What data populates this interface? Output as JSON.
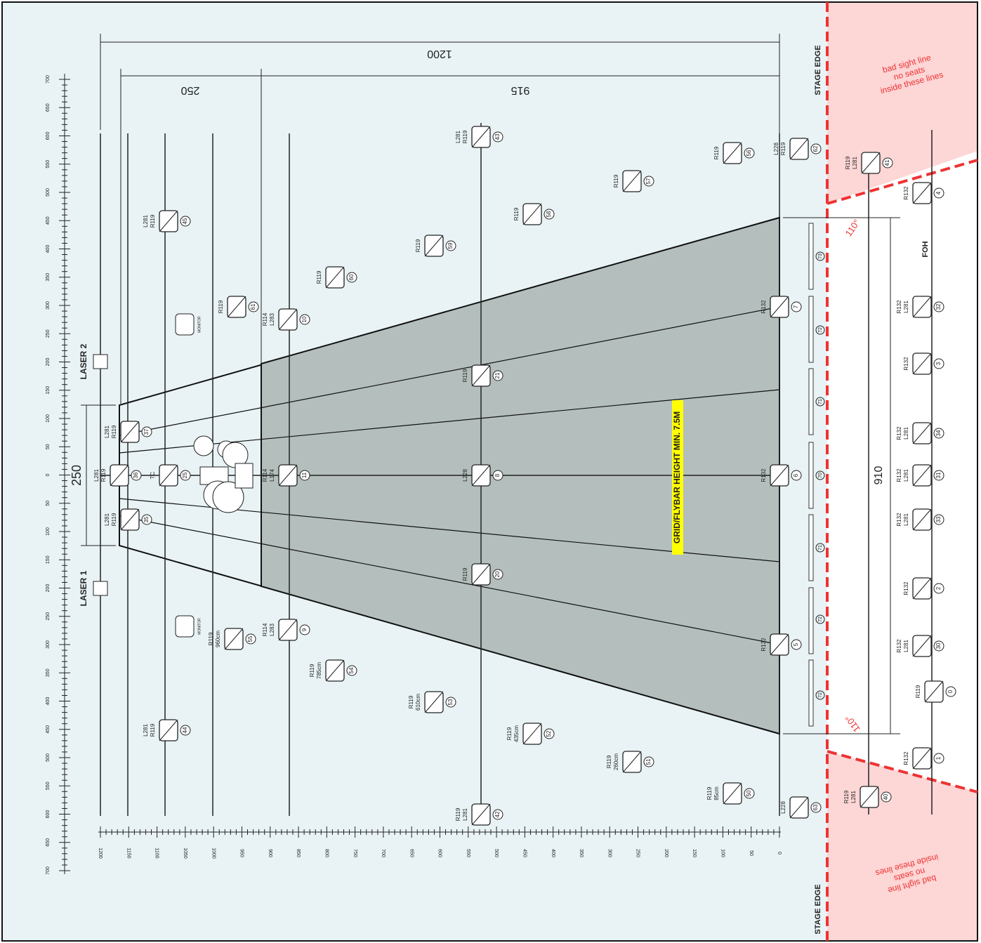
{
  "dimensions": {
    "total": "1200",
    "upstage": "250",
    "downstage": "915",
    "width": "250",
    "foh": "910"
  },
  "angles": [
    "110°",
    "110°"
  ],
  "stage_edge": [
    "STAGE EDGE",
    "STAGE EDGE"
  ],
  "foh": "FOH",
  "sight_note": [
    "bad sight line",
    "no seats",
    "inside these lines"
  ],
  "grid_note": "GRID/FLYBAR HEIGHT MIN. 7.5M",
  "lasers": [
    "LASER 2",
    "LASER 1"
  ],
  "monitors": [
    "MONITOR",
    "MONITOR"
  ],
  "ruler_side": [
    "700",
    "650",
    "600",
    "550",
    "500",
    "450",
    "400",
    "350",
    "300",
    "250",
    "200",
    "150",
    "100",
    "50",
    "0",
    "50",
    "100",
    "150",
    "200",
    "250",
    "300",
    "350",
    "400",
    "450",
    "500",
    "550",
    "600",
    "650",
    "700"
  ],
  "ruler_bottom": [
    "1200",
    "1150",
    "1100",
    "1050",
    "1000",
    "950",
    "900",
    "850",
    "800",
    "750",
    "700",
    "650",
    "600",
    "550",
    "500",
    "450",
    "400",
    "350",
    "300",
    "250",
    "200",
    "150",
    "100",
    "50",
    "0"
  ],
  "truss_numbers": [
    "73",
    "72",
    "71",
    "70",
    "71",
    "72",
    "72"
  ],
  "fixtures": [
    {
      "num": "43",
      "labels": [
        "L281",
        "R119"
      ]
    },
    {
      "num": "62",
      "labels": [
        "L228",
        "R119"
      ]
    },
    {
      "num": "56",
      "labels": [
        "R119"
      ]
    },
    {
      "num": "57",
      "labels": [
        "R119"
      ]
    },
    {
      "num": "58",
      "labels": [
        "R119"
      ]
    },
    {
      "num": "59",
      "labels": [
        "R119"
      ]
    },
    {
      "num": "60",
      "labels": [
        "R119"
      ]
    },
    {
      "num": "61",
      "labels": [
        "R119"
      ]
    },
    {
      "num": "45",
      "labels": [
        "L281",
        "R119"
      ]
    },
    {
      "num": "41",
      "labels": [
        "R119",
        "L281"
      ]
    },
    {
      "num": "4",
      "labels": [
        "R132"
      ]
    },
    {
      "num": "10",
      "labels": [
        "R114",
        "L283"
      ]
    },
    {
      "num": "7",
      "labels": [
        "R132"
      ]
    },
    {
      "num": "21",
      "labels": [
        "R119"
      ]
    },
    {
      "num": "37",
      "labels": [
        "L281",
        "R119"
      ]
    },
    {
      "num": "36",
      "labels": [
        "L281",
        "R119"
      ]
    },
    {
      "num": "25",
      "labels": [
        "TC"
      ]
    },
    {
      "num": "11",
      "labels": [
        "R114",
        "L174"
      ]
    },
    {
      "num": "8",
      "labels": [
        "L228"
      ]
    },
    {
      "num": "6",
      "labels": [
        "R132"
      ]
    },
    {
      "num": "35",
      "labels": [
        "L281",
        "R119"
      ]
    },
    {
      "num": "20",
      "labels": [
        "R119"
      ]
    },
    {
      "num": "9",
      "labels": [
        "R114",
        "L283"
      ]
    },
    {
      "num": "55",
      "labels": [
        "R119",
        "960cm"
      ]
    },
    {
      "num": "54",
      "labels": [
        "R119",
        "785cm"
      ]
    },
    {
      "num": "53",
      "labels": [
        "R119",
        "610cm"
      ]
    },
    {
      "num": "52",
      "labels": [
        "R119",
        "435cm"
      ]
    },
    {
      "num": "51",
      "labels": [
        "R119",
        "260cm"
      ]
    },
    {
      "num": "50",
      "labels": [
        "R119",
        "85cm"
      ]
    },
    {
      "num": "42",
      "labels": [
        "R119",
        "L281"
      ]
    },
    {
      "num": "63",
      "labels": [
        "L228"
      ]
    },
    {
      "num": "44",
      "labels": [
        "L281",
        "R119"
      ]
    },
    {
      "num": "5",
      "labels": [
        "R132"
      ]
    },
    {
      "num": "40",
      "labels": [
        "R119",
        "L281"
      ]
    },
    {
      "num": "32",
      "labels": [
        "R132",
        "L281"
      ]
    },
    {
      "num": "3",
      "labels": [
        "R132"
      ]
    },
    {
      "num": "34",
      "labels": [
        "R132",
        "L281"
      ]
    },
    {
      "num": "31",
      "labels": [
        "R132",
        "L281"
      ]
    },
    {
      "num": "33",
      "labels": [
        "R132",
        "L281"
      ]
    },
    {
      "num": "2",
      "labels": [
        "R132"
      ]
    },
    {
      "num": "30",
      "labels": [
        "R132",
        "L281"
      ]
    },
    {
      "num": "0",
      "labels": [
        "R119"
      ]
    },
    {
      "num": "1",
      "labels": [
        "R132"
      ]
    }
  ]
}
